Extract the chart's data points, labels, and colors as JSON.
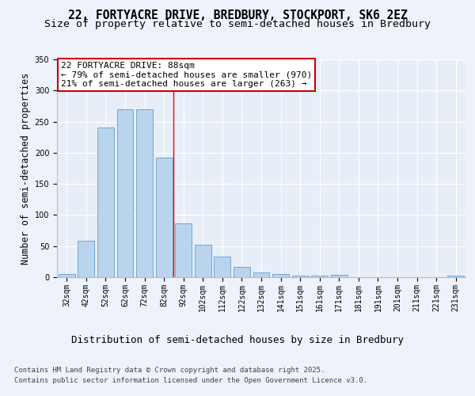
{
  "title_line1": "22, FORTYACRE DRIVE, BREDBURY, STOCKPORT, SK6 2EZ",
  "title_line2": "Size of property relative to semi-detached houses in Bredbury",
  "xlabel": "Distribution of semi-detached houses by size in Bredbury",
  "ylabel": "Number of semi-detached properties",
  "categories": [
    "32sqm",
    "42sqm",
    "52sqm",
    "62sqm",
    "72sqm",
    "82sqm",
    "92sqm",
    "102sqm",
    "112sqm",
    "122sqm",
    "132sqm",
    "141sqm",
    "151sqm",
    "161sqm",
    "171sqm",
    "181sqm",
    "191sqm",
    "201sqm",
    "211sqm",
    "221sqm",
    "231sqm"
  ],
  "values": [
    5,
    58,
    240,
    270,
    270,
    192,
    86,
    52,
    33,
    17,
    8,
    5,
    3,
    3,
    4,
    0,
    0,
    0,
    0,
    0,
    2
  ],
  "bar_color": "#bad4ee",
  "bar_edge_color": "#6aaad4",
  "red_line_x": 5.5,
  "annotation_text": "22 FORTYACRE DRIVE: 88sqm\n← 79% of semi-detached houses are smaller (970)\n21% of semi-detached houses are larger (263) →",
  "annotation_box_color": "#ffffff",
  "annotation_box_edge_color": "#cc0000",
  "ylim": [
    0,
    350
  ],
  "yticks": [
    0,
    50,
    100,
    150,
    200,
    250,
    300,
    350
  ],
  "fig_bg": "#eef2fb",
  "plot_bg": "#e8eef8",
  "footer_line1": "Contains HM Land Registry data © Crown copyright and database right 2025.",
  "footer_line2": "Contains public sector information licensed under the Open Government Licence v3.0.",
  "title_fontsize": 10.5,
  "subtitle_fontsize": 9.5,
  "ylabel_fontsize": 8.5,
  "xlabel_fontsize": 9,
  "tick_fontsize": 7,
  "annotation_fontsize": 8,
  "footer_fontsize": 6.5
}
